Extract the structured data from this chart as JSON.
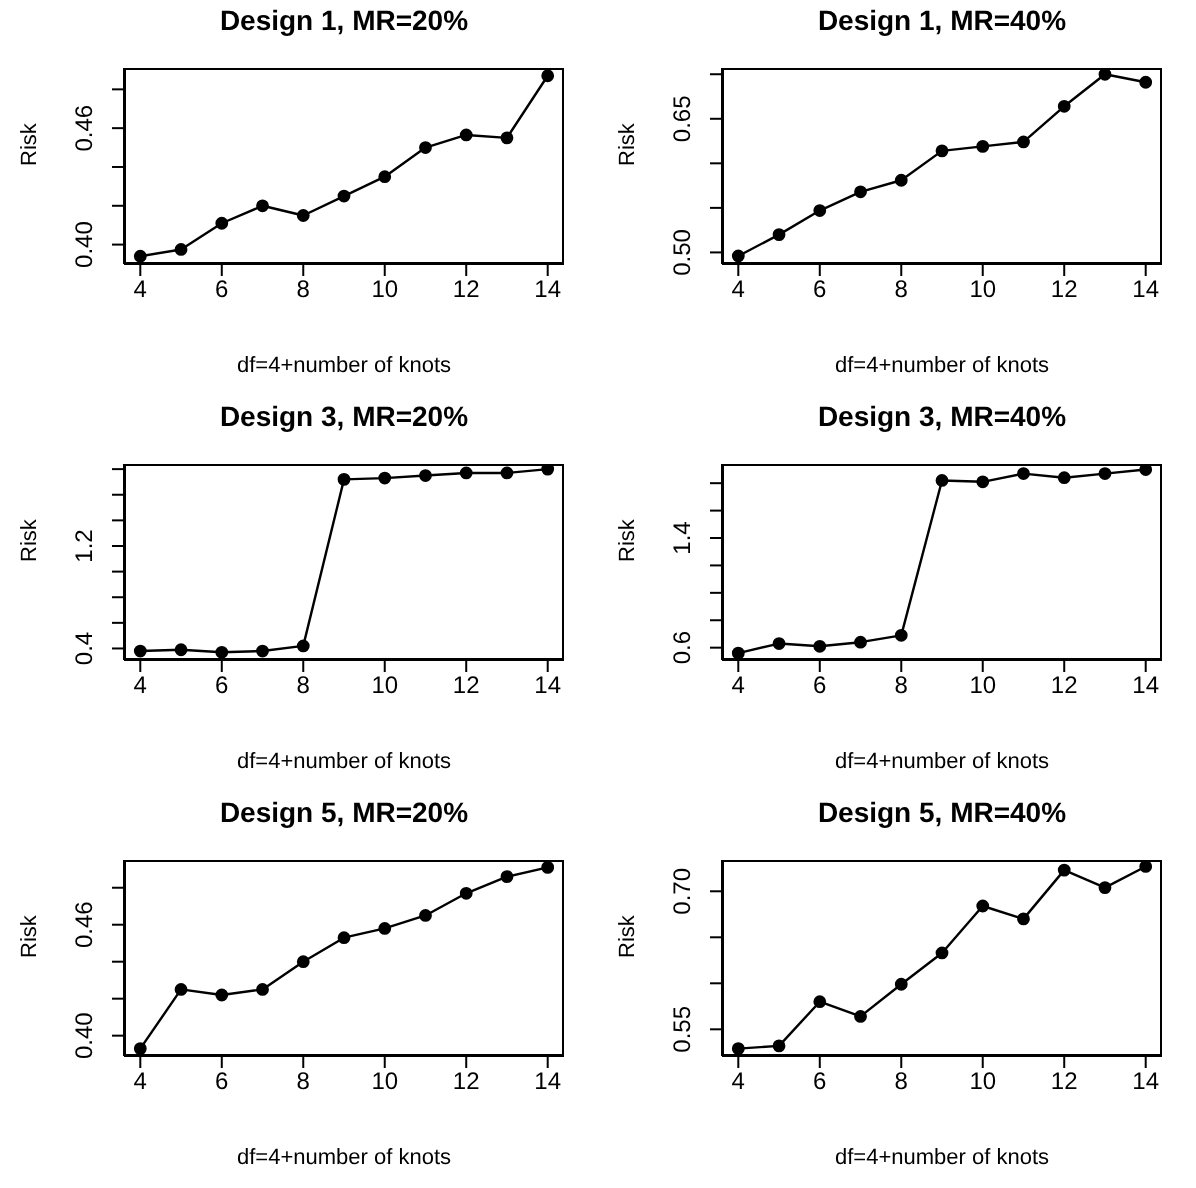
{
  "chart_data": [
    {
      "type": "line",
      "title": "Design 1, MR=20%",
      "xlabel": "df=4+number of knots",
      "ylabel": "Risk",
      "x": [
        4,
        5,
        6,
        7,
        8,
        9,
        10,
        11,
        12,
        13,
        14
      ],
      "values": [
        0.394,
        0.3975,
        0.411,
        0.42,
        0.415,
        0.425,
        0.435,
        0.45,
        0.4565,
        0.455,
        0.487
      ],
      "color": "#000000",
      "marker": "circle",
      "xlim": [
        3.6,
        14.4
      ],
      "xticks": [
        4,
        6,
        8,
        10,
        12,
        14
      ],
      "ylim": [
        0.39,
        0.491
      ],
      "yticks": [
        {
          "value": 0.4,
          "label": "0.40"
        },
        {
          "value": 0.42,
          "label": null
        },
        {
          "value": 0.44,
          "label": null
        },
        {
          "value": 0.46,
          "label": "0.46"
        },
        {
          "value": 0.48,
          "label": null
        }
      ]
    },
    {
      "type": "line",
      "title": "Design 1, MR=40%",
      "xlabel": "df=4+number of knots",
      "ylabel": "Risk",
      "x": [
        4,
        5,
        6,
        7,
        8,
        9,
        10,
        11,
        12,
        13,
        14
      ],
      "values": [
        0.496,
        0.52,
        0.547,
        0.568,
        0.581,
        0.614,
        0.619,
        0.624,
        0.664,
        0.7,
        0.691
      ],
      "color": "#000000",
      "marker": "circle",
      "xlim": [
        3.6,
        14.4
      ],
      "xticks": [
        4,
        6,
        8,
        10,
        12,
        14
      ],
      "ylim": [
        0.487,
        0.707
      ],
      "yticks": [
        {
          "value": 0.5,
          "label": "0.50"
        },
        {
          "value": 0.55,
          "label": null
        },
        {
          "value": 0.6,
          "label": null
        },
        {
          "value": 0.65,
          "label": "0.65"
        },
        {
          "value": 0.7,
          "label": null
        }
      ]
    },
    {
      "type": "line",
      "title": "Design 3, MR=20%",
      "xlabel": "df=4+number of knots",
      "ylabel": "Risk",
      "x": [
        4,
        5,
        6,
        7,
        8,
        9,
        10,
        11,
        12,
        13,
        14
      ],
      "values": [
        0.38,
        0.39,
        0.37,
        0.38,
        0.42,
        1.72,
        1.73,
        1.75,
        1.77,
        1.77,
        1.8
      ],
      "color": "#000000",
      "marker": "circle",
      "xlim": [
        3.6,
        14.4
      ],
      "xticks": [
        4,
        6,
        8,
        10,
        12,
        14
      ],
      "ylim": [
        0.31,
        1.84
      ],
      "yticks": [
        {
          "value": 0.4,
          "label": "0.4"
        },
        {
          "value": 0.6,
          "label": null
        },
        {
          "value": 0.8,
          "label": null
        },
        {
          "value": 1.0,
          "label": null
        },
        {
          "value": 1.2,
          "label": "1.2"
        },
        {
          "value": 1.4,
          "label": null
        },
        {
          "value": 1.6,
          "label": null
        },
        {
          "value": 1.8,
          "label": null
        }
      ]
    },
    {
      "type": "line",
      "title": "Design 3, MR=40%",
      "xlabel": "df=4+number of knots",
      "ylabel": "Risk",
      "x": [
        4,
        5,
        6,
        7,
        8,
        9,
        10,
        11,
        12,
        13,
        14
      ],
      "values": [
        0.56,
        0.63,
        0.61,
        0.64,
        0.69,
        1.82,
        1.81,
        1.87,
        1.84,
        1.87,
        1.9
      ],
      "color": "#000000",
      "marker": "circle",
      "xlim": [
        3.6,
        14.4
      ],
      "xticks": [
        4,
        6,
        8,
        10,
        12,
        14
      ],
      "ylim": [
        0.51,
        1.94
      ],
      "yticks": [
        {
          "value": 0.6,
          "label": "0.6"
        },
        {
          "value": 0.8,
          "label": null
        },
        {
          "value": 1.0,
          "label": null
        },
        {
          "value": 1.2,
          "label": null
        },
        {
          "value": 1.4,
          "label": "1.4"
        },
        {
          "value": 1.6,
          "label": null
        },
        {
          "value": 1.8,
          "label": null
        }
      ]
    },
    {
      "type": "line",
      "title": "Design 5, MR=20%",
      "xlabel": "df=4+number of knots",
      "ylabel": "Risk",
      "x": [
        4,
        5,
        6,
        7,
        8,
        9,
        10,
        11,
        12,
        13,
        14
      ],
      "values": [
        0.393,
        0.425,
        0.422,
        0.425,
        0.44,
        0.453,
        0.458,
        0.465,
        0.477,
        0.486,
        0.491
      ],
      "color": "#000000",
      "marker": "circle",
      "xlim": [
        3.6,
        14.4
      ],
      "xticks": [
        4,
        6,
        8,
        10,
        12,
        14
      ],
      "ylim": [
        0.389,
        0.495
      ],
      "yticks": [
        {
          "value": 0.4,
          "label": "0.40"
        },
        {
          "value": 0.42,
          "label": null
        },
        {
          "value": 0.44,
          "label": null
        },
        {
          "value": 0.46,
          "label": "0.46"
        },
        {
          "value": 0.48,
          "label": null
        }
      ]
    },
    {
      "type": "line",
      "title": "Design 5, MR=40%",
      "xlabel": "df=4+number of knots",
      "ylabel": "Risk",
      "x": [
        4,
        5,
        6,
        7,
        8,
        9,
        10,
        11,
        12,
        13,
        14
      ],
      "values": [
        0.529,
        0.532,
        0.58,
        0.564,
        0.599,
        0.633,
        0.684,
        0.67,
        0.723,
        0.704,
        0.727
      ],
      "color": "#000000",
      "marker": "circle",
      "xlim": [
        3.6,
        14.4
      ],
      "xticks": [
        4,
        6,
        8,
        10,
        12,
        14
      ],
      "ylim": [
        0.521,
        0.734
      ],
      "yticks": [
        {
          "value": 0.55,
          "label": "0.55"
        },
        {
          "value": 0.6,
          "label": null
        },
        {
          "value": 0.65,
          "label": null
        },
        {
          "value": 0.7,
          "label": "0.70"
        }
      ]
    }
  ]
}
